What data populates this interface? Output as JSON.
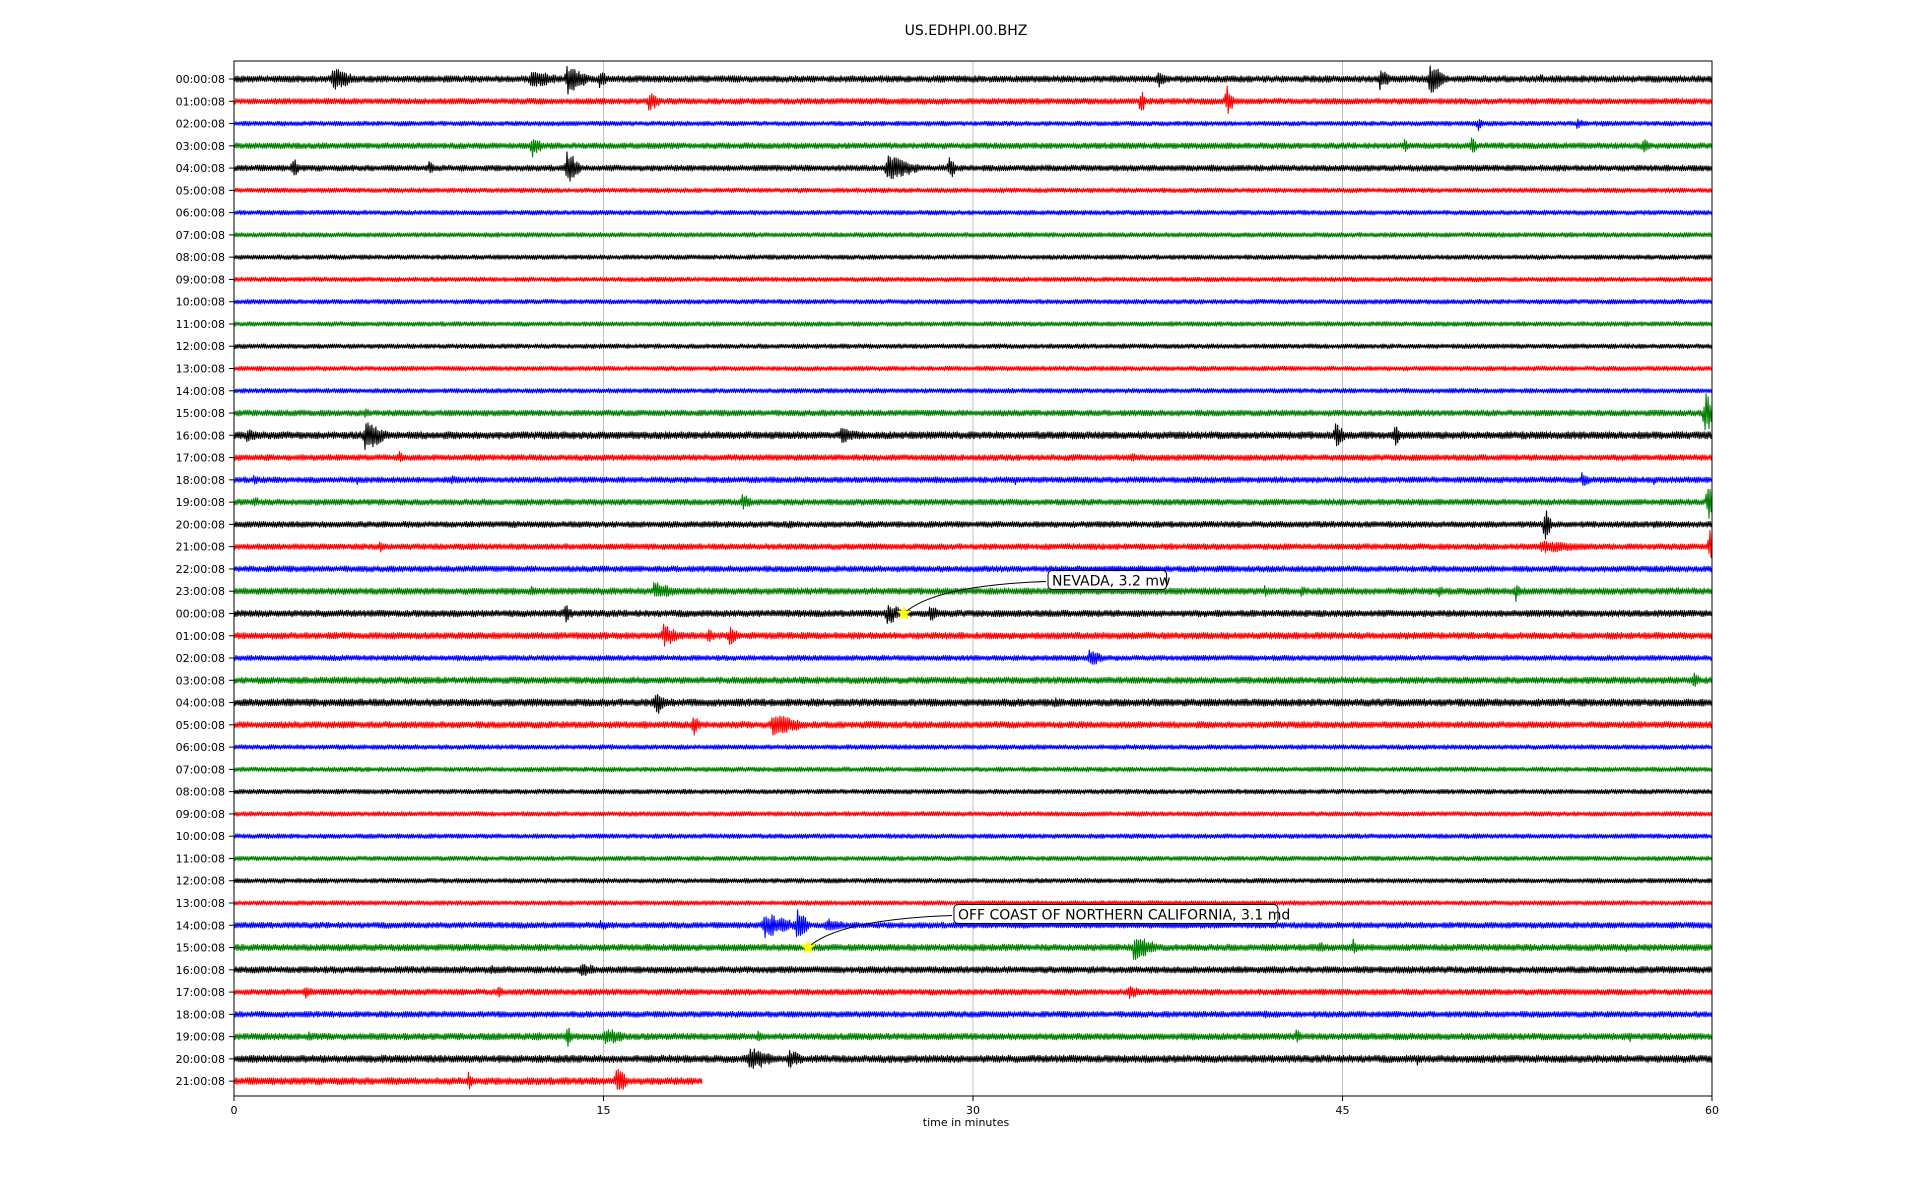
{
  "chart_data": {
    "type": "line",
    "title": "US.EDHPI.00.BHZ",
    "xlabel": "time in minutes",
    "xlim": [
      0,
      60
    ],
    "xticks": [
      0,
      15,
      30,
      45,
      60
    ],
    "grid_x": true,
    "colors_cycle": [
      "#000000",
      "#ff0000",
      "#0000ff",
      "#008000"
    ],
    "marker_color": "#ffff00",
    "rows": [
      {
        "label": "00:00:08",
        "color": "#000000",
        "noise": 0.5,
        "end": 60,
        "events": [
          [
            0.5,
            0.3,
            3
          ],
          [
            4,
            2,
            1
          ],
          [
            12,
            1.5,
            1.5
          ],
          [
            13.5,
            2.5,
            1
          ],
          [
            14.8,
            1.5,
            0.5
          ],
          [
            37.5,
            1.5,
            0.5
          ],
          [
            46.5,
            2,
            0.5
          ],
          [
            48.5,
            2.5,
            0.8
          ],
          [
            53,
            1,
            0.3
          ]
        ]
      },
      {
        "label": "01:00:08",
        "color": "#ff0000",
        "noise": 0.45,
        "end": 60,
        "events": [
          [
            16.8,
            1.8,
            0.6
          ],
          [
            36.8,
            3,
            0.2
          ],
          [
            40.3,
            3,
            0.3
          ]
        ]
      },
      {
        "label": "02:00:08",
        "color": "#0000ff",
        "noise": 0.35,
        "end": 60,
        "events": [
          [
            50.5,
            1.5,
            0.2
          ],
          [
            54.5,
            0.8,
            0.5
          ],
          [
            55.5,
            0.6,
            0.3
          ]
        ]
      },
      {
        "label": "03:00:08",
        "color": "#008000",
        "noise": 0.45,
        "end": 60,
        "events": [
          [
            12.1,
            2,
            0.5
          ],
          [
            47.5,
            1.2,
            0.2
          ],
          [
            50.2,
            1.8,
            0.3
          ],
          [
            57.2,
            2,
            0.3
          ]
        ]
      },
      {
        "label": "04:00:08",
        "color": "#000000",
        "noise": 0.45,
        "end": 60,
        "events": [
          [
            2.4,
            1.8,
            0.3
          ],
          [
            7.9,
            1.5,
            0.3
          ],
          [
            13.5,
            3,
            0.6
          ],
          [
            26.5,
            2,
            1.5
          ],
          [
            29,
            2,
            0.4
          ]
        ]
      },
      {
        "label": "05:00:08",
        "color": "#ff0000",
        "noise": 0.35,
        "end": 60,
        "events": []
      },
      {
        "label": "06:00:08",
        "color": "#0000ff",
        "noise": 0.35,
        "end": 60,
        "events": []
      },
      {
        "label": "07:00:08",
        "color": "#008000",
        "noise": 0.35,
        "end": 60,
        "events": []
      },
      {
        "label": "08:00:08",
        "color": "#000000",
        "noise": 0.35,
        "end": 60,
        "events": []
      },
      {
        "label": "09:00:08",
        "color": "#ff0000",
        "noise": 0.35,
        "end": 60,
        "events": []
      },
      {
        "label": "10:00:08",
        "color": "#0000ff",
        "noise": 0.35,
        "end": 60,
        "events": []
      },
      {
        "label": "11:00:08",
        "color": "#008000",
        "noise": 0.35,
        "end": 60,
        "events": []
      },
      {
        "label": "12:00:08",
        "color": "#000000",
        "noise": 0.35,
        "end": 60,
        "events": []
      },
      {
        "label": "13:00:08",
        "color": "#ff0000",
        "noise": 0.35,
        "end": 60,
        "events": []
      },
      {
        "label": "14:00:08",
        "color": "#0000ff",
        "noise": 0.35,
        "end": 60,
        "events": []
      },
      {
        "label": "15:00:08",
        "color": "#008000",
        "noise": 0.45,
        "end": 60,
        "events": [
          [
            5.3,
            1,
            0.3
          ],
          [
            59.7,
            3.5,
            0.6
          ]
        ]
      },
      {
        "label": "16:00:08",
        "color": "#000000",
        "noise": 0.55,
        "end": 60,
        "events": [
          [
            0.5,
            1,
            0.8
          ],
          [
            5.3,
            2.5,
            1
          ],
          [
            24.6,
            1.5,
            1
          ],
          [
            44.7,
            2,
            0.5
          ],
          [
            47.1,
            2,
            0.3
          ]
        ]
      },
      {
        "label": "17:00:08",
        "color": "#ff0000",
        "noise": 0.45,
        "end": 60,
        "events": [
          [
            1.3,
            0.8,
            0.3
          ],
          [
            6.7,
            1.2,
            0.3
          ],
          [
            22,
            0.8,
            0.2
          ],
          [
            36.4,
            0.8,
            0.5
          ]
        ]
      },
      {
        "label": "18:00:08",
        "color": "#0000ff",
        "noise": 0.45,
        "end": 60,
        "events": [
          [
            0.8,
            0.8,
            0.4
          ],
          [
            5,
            0.8,
            0.3
          ],
          [
            8.8,
            0.8,
            0.6
          ],
          [
            31.7,
            0.8,
            0.2
          ],
          [
            54.7,
            1.2,
            0.5
          ],
          [
            57.6,
            1,
            0.2
          ]
        ]
      },
      {
        "label": "19:00:08",
        "color": "#008000",
        "noise": 0.45,
        "end": 60,
        "events": [
          [
            0.8,
            1,
            0.4
          ],
          [
            20.6,
            1.3,
            0.6
          ],
          [
            31.2,
            0.6,
            0.2
          ],
          [
            59.8,
            3.5,
            0.4
          ]
        ]
      },
      {
        "label": "20:00:08",
        "color": "#000000",
        "noise": 0.45,
        "end": 60,
        "events": [
          [
            11.3,
            0.8,
            0.3
          ],
          [
            22.5,
            0.7,
            0.6
          ],
          [
            53.2,
            3.5,
            0.3
          ],
          [
            57.6,
            1,
            0.3
          ]
        ]
      },
      {
        "label": "21:00:08",
        "color": "#ff0000",
        "noise": 0.45,
        "end": 60,
        "events": [
          [
            5.9,
            1.2,
            0.3
          ],
          [
            53,
            1,
            3
          ],
          [
            59.9,
            3,
            0.3
          ]
        ]
      },
      {
        "label": "22:00:08",
        "color": "#0000ff",
        "noise": 0.45,
        "end": 60,
        "events": []
      },
      {
        "label": "23:00:08",
        "color": "#008000",
        "noise": 0.5,
        "end": 60,
        "events": [
          [
            12,
            1,
            0.4
          ],
          [
            17,
            1.5,
            1.2
          ],
          [
            41.8,
            1.5,
            0.2
          ],
          [
            43.3,
            0.8,
            0.5
          ],
          [
            48.9,
            1.2,
            0.3
          ],
          [
            52,
            1.8,
            0.3
          ]
        ]
      },
      {
        "label": "00:00:08",
        "color": "#000000",
        "noise": 0.5,
        "end": 60,
        "events": [
          [
            13.4,
            1.8,
            0.4
          ],
          [
            26.5,
            1.8,
            0.8
          ],
          [
            28.2,
            1.5,
            0.6
          ]
        ]
      },
      {
        "label": "01:00:08",
        "color": "#ff0000",
        "noise": 0.5,
        "end": 60,
        "events": [
          [
            17.4,
            2,
            0.8
          ],
          [
            19.2,
            1.2,
            0.5
          ],
          [
            20.1,
            1.5,
            0.5
          ]
        ]
      },
      {
        "label": "02:00:08",
        "color": "#0000ff",
        "noise": 0.4,
        "end": 60,
        "events": [
          [
            34.7,
            1.3,
            0.8
          ]
        ]
      },
      {
        "label": "03:00:08",
        "color": "#008000",
        "noise": 0.5,
        "end": 60,
        "events": [
          [
            59.2,
            1.5,
            0.4
          ]
        ]
      },
      {
        "label": "04:00:08",
        "color": "#000000",
        "noise": 0.55,
        "end": 60,
        "events": [
          [
            17.1,
            2.2,
            0.5
          ],
          [
            33.3,
            0.8,
            0.5
          ]
        ]
      },
      {
        "label": "05:00:08",
        "color": "#ff0000",
        "noise": 0.5,
        "end": 60,
        "events": [
          [
            16.5,
            0.8,
            0.5
          ],
          [
            18.6,
            2,
            0.4
          ],
          [
            21.8,
            2,
            1.5
          ]
        ]
      },
      {
        "label": "06:00:08",
        "color": "#0000ff",
        "noise": 0.35,
        "end": 60,
        "events": []
      },
      {
        "label": "07:00:08",
        "color": "#008000",
        "noise": 0.35,
        "end": 60,
        "events": []
      },
      {
        "label": "08:00:08",
        "color": "#000000",
        "noise": 0.35,
        "end": 60,
        "events": []
      },
      {
        "label": "09:00:08",
        "color": "#ff0000",
        "noise": 0.35,
        "end": 60,
        "events": []
      },
      {
        "label": "10:00:08",
        "color": "#0000ff",
        "noise": 0.35,
        "end": 60,
        "events": []
      },
      {
        "label": "11:00:08",
        "color": "#008000",
        "noise": 0.35,
        "end": 60,
        "events": []
      },
      {
        "label": "12:00:08",
        "color": "#000000",
        "noise": 0.35,
        "end": 60,
        "events": []
      },
      {
        "label": "13:00:08",
        "color": "#ff0000",
        "noise": 0.35,
        "end": 60,
        "events": []
      },
      {
        "label": "14:00:08",
        "color": "#0000ff",
        "noise": 0.45,
        "end": 60,
        "events": [
          [
            14.8,
            0.8,
            0.8
          ],
          [
            21.5,
            2,
            1.5
          ],
          [
            22.8,
            2.8,
            0.6
          ],
          [
            24,
            1.3,
            1
          ]
        ]
      },
      {
        "label": "15:00:08",
        "color": "#008000",
        "noise": 0.5,
        "end": 60,
        "events": [
          [
            36.5,
            2,
            1.2
          ],
          [
            44,
            1,
            0.5
          ],
          [
            45.4,
            1.5,
            0.3
          ],
          [
            56.5,
            0.8,
            0.3
          ],
          [
            58.5,
            0.6,
            0.5
          ]
        ]
      },
      {
        "label": "16:00:08",
        "color": "#000000",
        "noise": 0.5,
        "end": 60,
        "events": [
          [
            10.4,
            0.8,
            0.6
          ],
          [
            14,
            1.2,
            1
          ]
        ]
      },
      {
        "label": "17:00:08",
        "color": "#ff0000",
        "noise": 0.45,
        "end": 60,
        "events": [
          [
            2.9,
            1.5,
            0.3
          ],
          [
            10.7,
            1.2,
            0.3
          ],
          [
            14.4,
            0.8,
            0.3
          ],
          [
            36.3,
            1.2,
            0.6
          ]
        ]
      },
      {
        "label": "18:00:08",
        "color": "#0000ff",
        "noise": 0.45,
        "end": 60,
        "events": [
          [
            41.8,
            0.8,
            0.3
          ],
          [
            43.8,
            0.8,
            0.3
          ]
        ]
      },
      {
        "label": "19:00:08",
        "color": "#008000",
        "noise": 0.5,
        "end": 60,
        "events": [
          [
            3,
            1,
            0.4
          ],
          [
            12.3,
            0.8,
            0.4
          ],
          [
            13.5,
            2,
            0.3
          ],
          [
            15,
            1.5,
            1.2
          ],
          [
            21.2,
            1,
            0.4
          ],
          [
            43.1,
            1.3,
            0.3
          ],
          [
            56.6,
            1,
            0.3
          ]
        ]
      },
      {
        "label": "20:00:08",
        "color": "#000000",
        "noise": 0.55,
        "end": 60,
        "events": [
          [
            20.9,
            2,
            1.2
          ],
          [
            22.5,
            1.5,
            0.8
          ],
          [
            48,
            1.2,
            0.3
          ]
        ]
      },
      {
        "label": "21:00:08",
        "color": "#ff0000",
        "noise": 0.55,
        "end": 19,
        "events": [
          [
            9.5,
            1.5,
            0.3
          ],
          [
            15.5,
            2.2,
            0.6
          ]
        ]
      }
    ],
    "annotations": [
      {
        "text": "NEVADA, 3.2 mw",
        "row": 24,
        "x": 27.2
      },
      {
        "text": "OFF COAST OF NORTHERN CALIFORNIA, 3.1 md",
        "row": 39,
        "x": 23.3
      }
    ]
  }
}
